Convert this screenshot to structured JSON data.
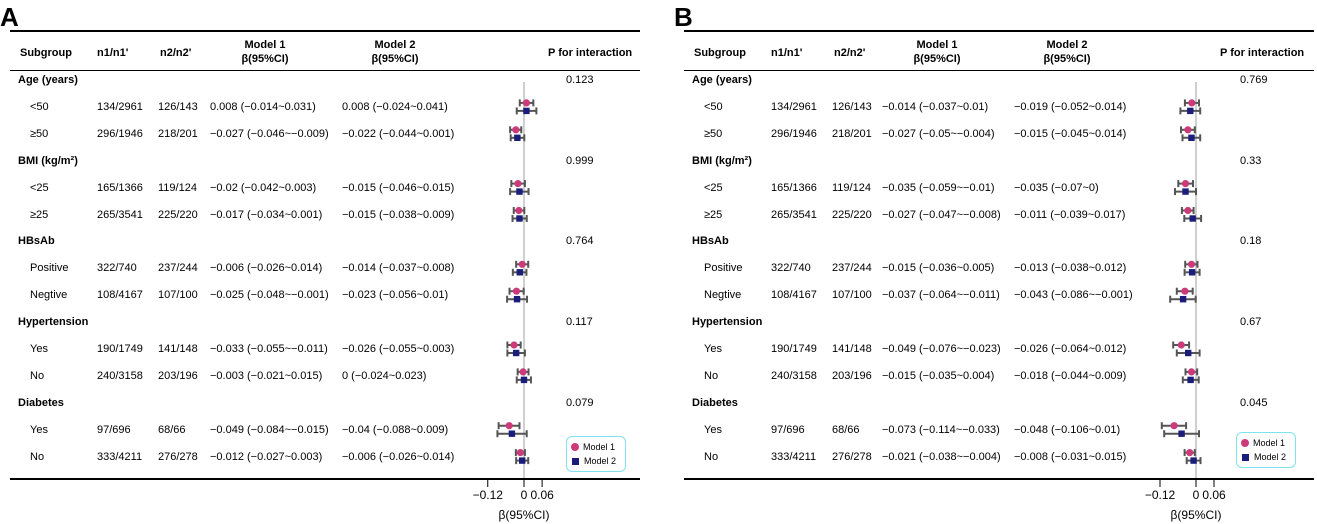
{
  "panels": [
    {
      "label": "A",
      "headers": {
        "subgroup": "Subgroup",
        "n1": "n1/n1'",
        "n2": "n2/n2'",
        "model1": "Model 1",
        "model2": "Model 2",
        "beta_ci": "β(95%CI)",
        "p": "P for interaction"
      },
      "rows": [
        {
          "type": "group",
          "name": "Age (years)",
          "p": "0.123"
        },
        {
          "type": "item",
          "name": "<50",
          "n1": "134/2961",
          "n2": "126/143",
          "m1_text": "0.008 (−0.014~0.031)",
          "m2_text": "0.008 (−0.024~0.041)",
          "m1": [
            0.008,
            -0.014,
            0.031
          ],
          "m2": [
            0.008,
            -0.024,
            0.041
          ]
        },
        {
          "type": "item",
          "name": "≥50",
          "n1": "296/1946",
          "n2": "218/201",
          "m1_text": "−0.027 (−0.046~−0.009)",
          "m2_text": "−0.022 (−0.044~0.001)",
          "m1": [
            -0.027,
            -0.046,
            -0.009
          ],
          "m2": [
            -0.022,
            -0.044,
            0.001
          ]
        },
        {
          "type": "group",
          "name": "BMI (kg/m²)",
          "p": "0.999"
        },
        {
          "type": "item",
          "name": "<25",
          "n1": "165/1366",
          "n2": "119/124",
          "m1_text": "−0.02 (−0.042~0.003)",
          "m2_text": "−0.015 (−0.046~0.015)",
          "m1": [
            -0.02,
            -0.042,
            0.003
          ],
          "m2": [
            -0.015,
            -0.046,
            0.015
          ]
        },
        {
          "type": "item",
          "name": "≥25",
          "n1": "265/3541",
          "n2": "225/220",
          "m1_text": "−0.017 (−0.034~0.001)",
          "m2_text": "−0.015 (−0.038~0.009)",
          "m1": [
            -0.017,
            -0.034,
            0.001
          ],
          "m2": [
            -0.015,
            -0.038,
            0.009
          ]
        },
        {
          "type": "group",
          "name": "HBsAb",
          "p": "0.764"
        },
        {
          "type": "item",
          "name": "Positive",
          "n1": "322/740",
          "n2": "237/244",
          "m1_text": "−0.006 (−0.026~0.014)",
          "m2_text": "−0.014 (−0.037~0.008)",
          "m1": [
            -0.006,
            -0.026,
            0.014
          ],
          "m2": [
            -0.014,
            -0.037,
            0.008
          ]
        },
        {
          "type": "item",
          "name": "Negtive",
          "n1": "108/4167",
          "n2": "107/100",
          "m1_text": "−0.025 (−0.048~−0.001)",
          "m2_text": "−0.023 (−0.056~0.01)",
          "m1": [
            -0.025,
            -0.048,
            -0.001
          ],
          "m2": [
            -0.023,
            -0.056,
            0.01
          ]
        },
        {
          "type": "group",
          "name": "Hypertension",
          "p": "0.117"
        },
        {
          "type": "item",
          "name": "Yes",
          "n1": "190/1749",
          "n2": "141/148",
          "m1_text": "−0.033 (−0.055~−0.011)",
          "m2_text": "−0.026 (−0.055~0.003)",
          "m1": [
            -0.033,
            -0.055,
            -0.011
          ],
          "m2": [
            -0.026,
            -0.055,
            0.003
          ]
        },
        {
          "type": "item",
          "name": "No",
          "n1": "240/3158",
          "n2": "203/196",
          "m1_text": "−0.003 (−0.021~0.015)",
          "m2_text": "0 (−0.024~0.023)",
          "m1": [
            -0.003,
            -0.021,
            0.015
          ],
          "m2": [
            0,
            -0.024,
            0.023
          ]
        },
        {
          "type": "group",
          "name": "Diabetes",
          "p": "0.079"
        },
        {
          "type": "item",
          "name": "Yes",
          "n1": "97/696",
          "n2": "68/66",
          "m1_text": "−0.049 (−0.084~−0.015)",
          "m2_text": "−0.04 (−0.088~0.009)",
          "m1": [
            -0.049,
            -0.084,
            -0.015
          ],
          "m2": [
            -0.04,
            -0.088,
            0.009
          ]
        },
        {
          "type": "item",
          "name": "No",
          "n1": "333/4211",
          "n2": "276/278",
          "m1_text": "−0.012 (−0.027~0.003)",
          "m2_text": "−0.006 (−0.026~0.014)",
          "m1": [
            -0.012,
            -0.027,
            0.003
          ],
          "m2": [
            -0.006,
            -0.026,
            0.014
          ]
        }
      ],
      "axis": {
        "ticks": [
          -0.12,
          0,
          0.06
        ],
        "tick_labels": [
          "−0.12",
          "0",
          "0.06"
        ],
        "xlabel": "β(95%CI)"
      },
      "legend": [
        "Model 1",
        "Model 2"
      ]
    },
    {
      "label": "B",
      "headers": {
        "subgroup": "Subgroup",
        "n1": "n1/n1'",
        "n2": "n2/n2'",
        "model1": "Model 1",
        "model2": "Model 2",
        "beta_ci": "β(95%CI)",
        "p": "P for interaction"
      },
      "rows": [
        {
          "type": "group",
          "name": "Age (years)",
          "p": "0.769"
        },
        {
          "type": "item",
          "name": "<50",
          "n1": "134/2961",
          "n2": "126/143",
          "m1_text": "−0.014 (−0.037~0.01)",
          "m2_text": "−0.019 (−0.052~0.014)",
          "m1": [
            -0.014,
            -0.037,
            0.01
          ],
          "m2": [
            -0.019,
            -0.052,
            0.014
          ]
        },
        {
          "type": "item",
          "name": "≥50",
          "n1": "296/1946",
          "n2": "218/201",
          "m1_text": "−0.027 (−0.05~−0.004)",
          "m2_text": "−0.015 (−0.045~0.014)",
          "m1": [
            -0.027,
            -0.05,
            -0.004
          ],
          "m2": [
            -0.015,
            -0.045,
            0.014
          ]
        },
        {
          "type": "group",
          "name": "BMI (kg/m²)",
          "p": "0.33"
        },
        {
          "type": "item",
          "name": "<25",
          "n1": "165/1366",
          "n2": "119/124",
          "m1_text": "−0.035 (−0.059~−0.01)",
          "m2_text": "−0.035 (−0.07~0)",
          "m1": [
            -0.035,
            -0.059,
            -0.01
          ],
          "m2": [
            -0.035,
            -0.07,
            0
          ]
        },
        {
          "type": "item",
          "name": "≥25",
          "n1": "265/3541",
          "n2": "225/220",
          "m1_text": "−0.027 (−0.047~−0.008)",
          "m2_text": "−0.011 (−0.039~0.017)",
          "m1": [
            -0.027,
            -0.047,
            -0.008
          ],
          "m2": [
            -0.011,
            -0.039,
            0.017
          ]
        },
        {
          "type": "group",
          "name": "HBsAb",
          "p": "0.18"
        },
        {
          "type": "item",
          "name": "Positive",
          "n1": "322/740",
          "n2": "237/244",
          "m1_text": "−0.015 (−0.036~0.005)",
          "m2_text": "−0.013 (−0.038~0.012)",
          "m1": [
            -0.015,
            -0.036,
            0.005
          ],
          "m2": [
            -0.013,
            -0.038,
            0.012
          ]
        },
        {
          "type": "item",
          "name": "Negtive",
          "n1": "108/4167",
          "n2": "107/100",
          "m1_text": "−0.037 (−0.064~−0.011)",
          "m2_text": "−0.043 (−0.086~−0.001)",
          "m1": [
            -0.037,
            -0.064,
            -0.011
          ],
          "m2": [
            -0.043,
            -0.086,
            -0.001
          ]
        },
        {
          "type": "group",
          "name": "Hypertension",
          "p": "0.67"
        },
        {
          "type": "item",
          "name": "Yes",
          "n1": "190/1749",
          "n2": "141/148",
          "m1_text": "−0.049 (−0.076~−0.023)",
          "m2_text": "−0.026 (−0.064~0.012)",
          "m1": [
            -0.049,
            -0.076,
            -0.023
          ],
          "m2": [
            -0.026,
            -0.064,
            0.012
          ]
        },
        {
          "type": "item",
          "name": "No",
          "n1": "240/3158",
          "n2": "203/196",
          "m1_text": "−0.015 (−0.035~0.004)",
          "m2_text": "−0.018 (−0.044~0.009)",
          "m1": [
            -0.015,
            -0.035,
            0.004
          ],
          "m2": [
            -0.018,
            -0.044,
            0.009
          ]
        },
        {
          "type": "group",
          "name": "Diabetes",
          "p": "0.045"
        },
        {
          "type": "item",
          "name": "Yes",
          "n1": "97/696",
          "n2": "68/66",
          "m1_text": "−0.073 (−0.114~−0.033)",
          "m2_text": "−0.048 (−0.106~0.01)",
          "m1": [
            -0.073,
            -0.114,
            -0.033
          ],
          "m2": [
            -0.048,
            -0.106,
            0.01
          ]
        },
        {
          "type": "item",
          "name": "No",
          "n1": "333/4211",
          "n2": "276/278",
          "m1_text": "−0.021 (−0.038~−0.004)",
          "m2_text": "−0.008 (−0.031~0.015)",
          "m1": [
            -0.021,
            -0.038,
            -0.004
          ],
          "m2": [
            -0.008,
            -0.031,
            0.015
          ]
        }
      ],
      "axis": {
        "ticks": [
          -0.12,
          0,
          0.06
        ],
        "tick_labels": [
          "−0.12",
          "0",
          "0.06"
        ],
        "xlabel": "β(95%CI)"
      },
      "legend": [
        "Model 1",
        "Model 2"
      ]
    }
  ],
  "colors": {
    "model1": "#cc3a7a",
    "model2": "#1a1d7a",
    "whisker": "#555555",
    "refline": "#b0b0b0",
    "legend_border": "#7fe3ef"
  },
  "chart_data": [
    {
      "type": "forest",
      "title": "A",
      "categories": [
        "Age (years) <50",
        "Age (years) ≥50",
        "BMI <25",
        "BMI ≥25",
        "HBsAb Positive",
        "HBsAb Negtive",
        "Hypertension Yes",
        "Hypertension No",
        "Diabetes Yes",
        "Diabetes No"
      ],
      "series": [
        {
          "name": "Model 1",
          "values": [
            0.008,
            -0.027,
            -0.02,
            -0.017,
            -0.006,
            -0.025,
            -0.033,
            -0.003,
            -0.049,
            -0.012
          ],
          "lower": [
            -0.014,
            -0.046,
            -0.042,
            -0.034,
            -0.026,
            -0.048,
            -0.055,
            -0.021,
            -0.084,
            -0.027
          ],
          "upper": [
            0.031,
            -0.009,
            0.003,
            0.001,
            0.014,
            -0.001,
            -0.011,
            0.015,
            -0.015,
            0.003
          ]
        },
        {
          "name": "Model 2",
          "values": [
            0.008,
            -0.022,
            -0.015,
            -0.015,
            -0.014,
            -0.023,
            -0.026,
            0,
            -0.04,
            -0.006
          ],
          "lower": [
            -0.024,
            -0.044,
            -0.046,
            -0.038,
            -0.037,
            -0.056,
            -0.055,
            -0.024,
            -0.088,
            -0.026
          ],
          "upper": [
            0.041,
            0.001,
            0.015,
            0.009,
            0.008,
            0.01,
            0.003,
            0.023,
            0.009,
            0.014
          ]
        }
      ],
      "xlabel": "β(95%CI)",
      "xlim": [
        -0.12,
        0.06
      ]
    },
    {
      "type": "forest",
      "title": "B",
      "categories": [
        "Age (years) <50",
        "Age (years) ≥50",
        "BMI <25",
        "BMI ≥25",
        "HBsAb Positive",
        "HBsAb Negtive",
        "Hypertension Yes",
        "Hypertension No",
        "Diabetes Yes",
        "Diabetes No"
      ],
      "series": [
        {
          "name": "Model 1",
          "values": [
            -0.014,
            -0.027,
            -0.035,
            -0.027,
            -0.015,
            -0.037,
            -0.049,
            -0.015,
            -0.073,
            -0.021
          ],
          "lower": [
            -0.037,
            -0.05,
            -0.059,
            -0.047,
            -0.036,
            -0.064,
            -0.076,
            -0.035,
            -0.114,
            -0.038
          ],
          "upper": [
            0.01,
            -0.004,
            -0.01,
            -0.008,
            0.005,
            -0.011,
            -0.023,
            0.004,
            -0.033,
            -0.004
          ]
        },
        {
          "name": "Model 2",
          "values": [
            -0.019,
            -0.015,
            -0.035,
            -0.011,
            -0.013,
            -0.043,
            -0.026,
            -0.018,
            -0.048,
            -0.008
          ],
          "lower": [
            -0.052,
            -0.045,
            -0.07,
            -0.039,
            -0.038,
            -0.086,
            -0.064,
            -0.044,
            -0.106,
            -0.031
          ],
          "upper": [
            0.014,
            0.014,
            0,
            0.017,
            0.012,
            -0.001,
            0.012,
            0.009,
            0.01,
            0.015
          ]
        }
      ],
      "xlabel": "β(95%CI)",
      "xlim": [
        -0.12,
        0.06
      ]
    }
  ]
}
